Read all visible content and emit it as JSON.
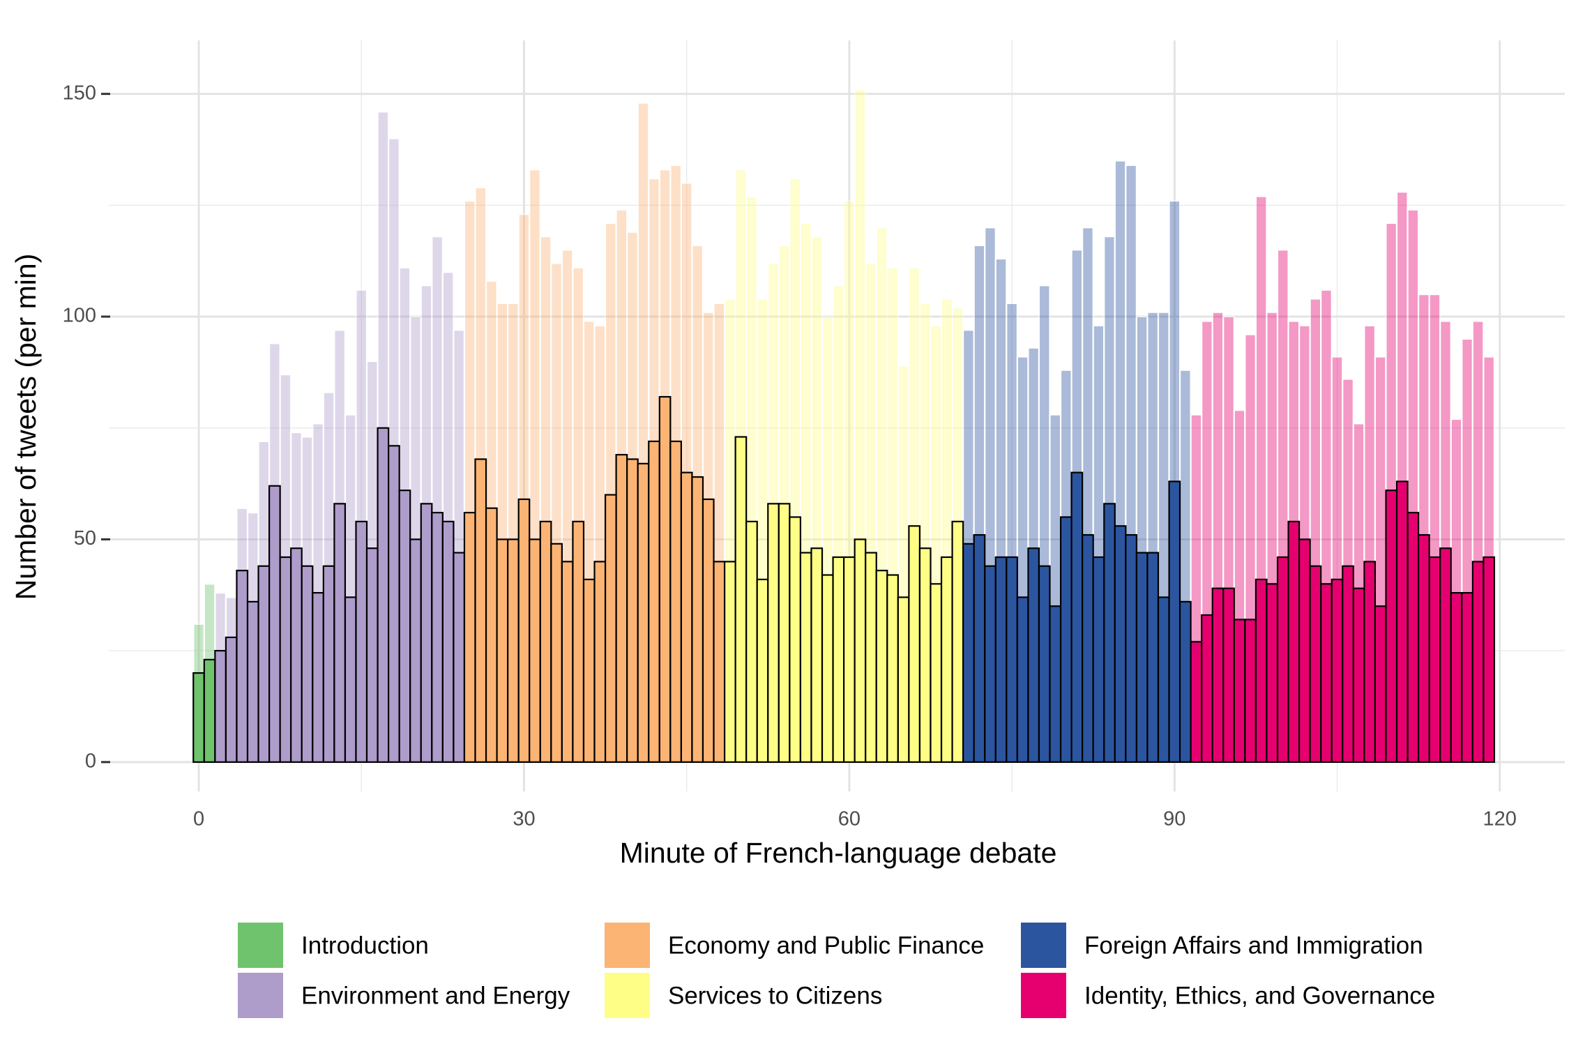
{
  "chart_data": {
    "type": "bar",
    "x_label": "Minute of French-language debate",
    "y_label": "Number of tweets (per min)",
    "x": [
      0,
      1,
      2,
      3,
      4,
      5,
      6,
      7,
      8,
      9,
      10,
      11,
      12,
      13,
      14,
      15,
      16,
      17,
      18,
      19,
      20,
      21,
      22,
      23,
      24,
      25,
      26,
      27,
      28,
      29,
      30,
      31,
      32,
      33,
      34,
      35,
      36,
      37,
      38,
      39,
      40,
      41,
      42,
      43,
      44,
      45,
      46,
      47,
      48,
      49,
      50,
      51,
      52,
      53,
      54,
      55,
      56,
      57,
      58,
      59,
      60,
      61,
      62,
      63,
      64,
      65,
      66,
      67,
      68,
      69,
      70,
      71,
      72,
      73,
      74,
      75,
      76,
      77,
      78,
      79,
      80,
      81,
      82,
      83,
      84,
      85,
      86,
      87,
      88,
      89,
      90,
      91,
      92,
      93,
      94,
      95,
      96,
      97,
      98,
      99,
      100,
      101,
      102,
      103,
      104,
      105,
      106,
      107,
      108,
      109,
      110,
      111,
      112,
      113,
      114,
      115,
      116,
      117,
      118,
      119
    ],
    "series": [
      {
        "opacity": 0.4,
        "outline": "#ffffff",
        "values": [
          31,
          40,
          38,
          37,
          57,
          56,
          72,
          94,
          87,
          74,
          73,
          76,
          83,
          97,
          78,
          106,
          90,
          146,
          140,
          111,
          100,
          107,
          118,
          110,
          97,
          126,
          129,
          108,
          103,
          103,
          123,
          133,
          118,
          112,
          115,
          111,
          99,
          98,
          121,
          124,
          119,
          148,
          131,
          133,
          134,
          130,
          116,
          101,
          103,
          104,
          133,
          127,
          104,
          112,
          116,
          131,
          121,
          118,
          100,
          107,
          126,
          151,
          112,
          120,
          111,
          89,
          111,
          103,
          98,
          104,
          102,
          97,
          116,
          120,
          113,
          103,
          91,
          93,
          107,
          78,
          88,
          115,
          120,
          98,
          118,
          135,
          134,
          100,
          101,
          101,
          126,
          88,
          78,
          99,
          101,
          100,
          79,
          96,
          127,
          101,
          115,
          99,
          98,
          104,
          106,
          91,
          86,
          76,
          98,
          91,
          121,
          128,
          124,
          105,
          105,
          99,
          77,
          95,
          99,
          91
        ]
      },
      {
        "opacity": 1,
        "outline": "#000000",
        "values": [
          20,
          23,
          25,
          28,
          43,
          36,
          44,
          62,
          46,
          48,
          44,
          38,
          44,
          58,
          37,
          54,
          48,
          75,
          71,
          61,
          50,
          58,
          56,
          54,
          47,
          56,
          68,
          57,
          50,
          50,
          59,
          50,
          54,
          49,
          45,
          54,
          41,
          45,
          60,
          69,
          68,
          67,
          72,
          82,
          72,
          65,
          64,
          59,
          45,
          45,
          73,
          54,
          41,
          58,
          58,
          55,
          47,
          48,
          42,
          46,
          46,
          50,
          47,
          43,
          42,
          37,
          53,
          48,
          40,
          46,
          54,
          49,
          51,
          44,
          46,
          46,
          37,
          48,
          44,
          35,
          55,
          65,
          51,
          46,
          58,
          53,
          51,
          47,
          47,
          37,
          63,
          36,
          27,
          33,
          39,
          39,
          32,
          32,
          41,
          40,
          46,
          54,
          50,
          44,
          40,
          41,
          44,
          39,
          45,
          35,
          61,
          63,
          56,
          51,
          46,
          48,
          38,
          38,
          45,
          46
        ]
      }
    ],
    "segments": [
      {
        "name": "Introduction",
        "color": "#70c36d",
        "start": 0,
        "end": 1
      },
      {
        "name": "Environment and Energy",
        "color": "#ae9ccb",
        "start": 2,
        "end": 24
      },
      {
        "name": "Economy and Public Finance",
        "color": "#fbb474",
        "start": 25,
        "end": 48
      },
      {
        "name": "Services to Citizens",
        "color": "#fefe86",
        "start": 49,
        "end": 70
      },
      {
        "name": "Foreign Affairs and Immigration",
        "color": "#2c55a0",
        "start": 71,
        "end": 91
      },
      {
        "name": "Identity, Ethics, and Governance",
        "color": "#e6006f",
        "start": 92,
        "end": 119
      }
    ],
    "xlim": [
      -8.3,
      126
    ],
    "ylim": [
      -6.6,
      162
    ],
    "xticks": [
      0,
      30,
      60,
      90,
      120
    ],
    "yticks": [
      0,
      50,
      100,
      150
    ],
    "grid": true,
    "legend": "bottom"
  }
}
